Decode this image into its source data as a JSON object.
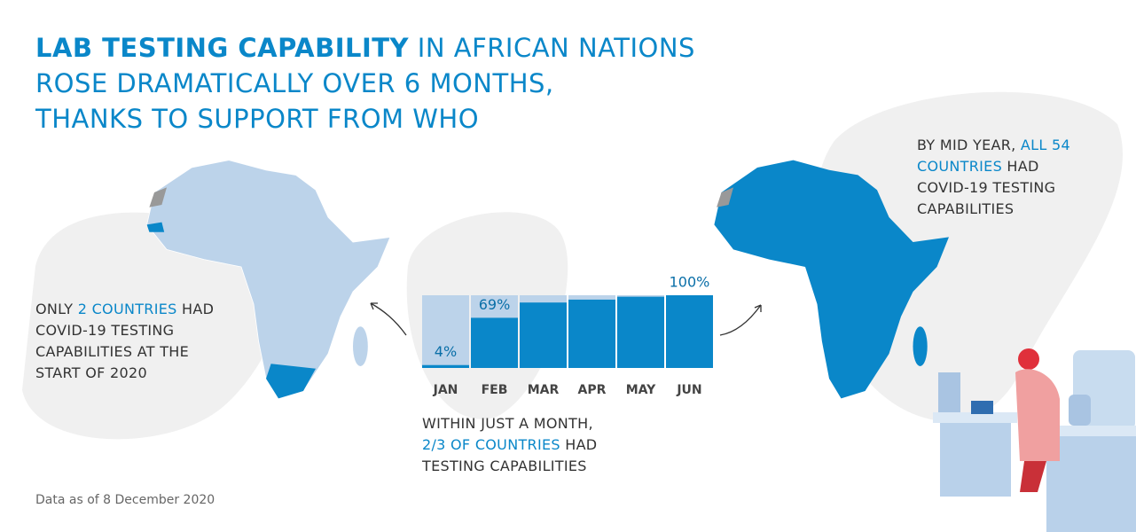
{
  "chart_data": {
    "type": "bar",
    "title_bold": "LAB TESTING CAPABILITY",
    "title_lines": [
      "IN AFRICAN NATIONS",
      "ROSE DRAMATICALLY OVER 6 MONTHS,",
      "THANKS TO SUPPORT FROM WHO"
    ],
    "categories": [
      "JAN",
      "FEB",
      "MAR",
      "APR",
      "MAY",
      "JUN"
    ],
    "values": [
      4,
      69,
      90,
      94,
      98,
      100
    ],
    "value_labels": [
      "4%",
      "69%",
      null,
      null,
      null,
      "100%"
    ],
    "ylim": [
      0,
      100
    ],
    "color": "#0a87c9",
    "track_color": "#bcd3ea",
    "annotations": {
      "left": {
        "before": "ONLY",
        "highlight": "2 COUNTRIES",
        "after": "HAD COVID-19 TESTING CAPABILITIES AT THE START OF 2020"
      },
      "bottom": {
        "before": "WITHIN JUST A MONTH,",
        "highlight": "2/3 OF COUNTRIES",
        "after": "HAD TESTING CAPABILITIES"
      },
      "right": {
        "before": "BY MID YEAR,",
        "highlight": "ALL 54 COUNTRIES",
        "after": "HAD COVID-19 TESTING CAPABILITIES"
      }
    },
    "footnote": "Data as of 8 December 2020"
  }
}
